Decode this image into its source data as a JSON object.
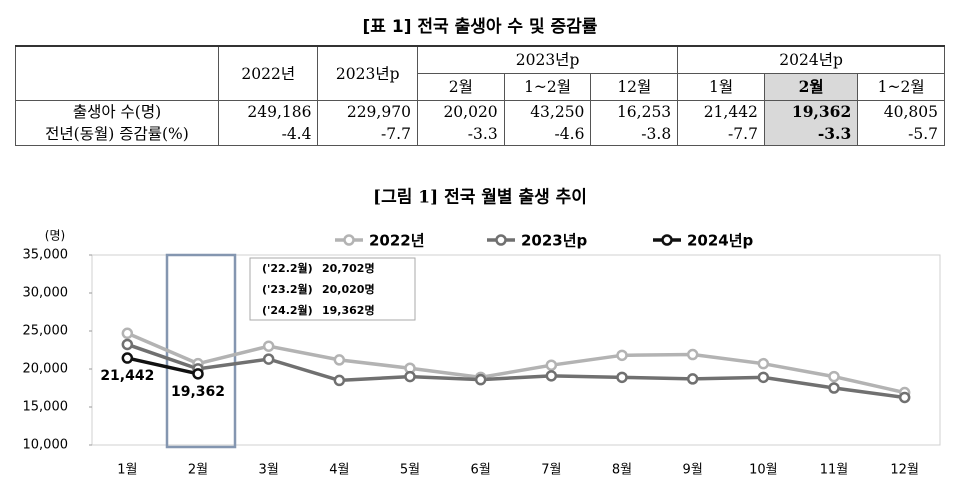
{
  "table": {
    "title": "[표 1] 전국 출생아 수 및 증감률",
    "years": [
      "2022년",
      "2023년p",
      "2023년p",
      "2024년p"
    ],
    "months": [
      "2월",
      "1~2월",
      "12월",
      "1월",
      "2월",
      "1~2월"
    ],
    "rows": [
      {
        "label": "출생아 수(명)",
        "cells": [
          "249,186",
          "229,970",
          "20,020",
          "43,250",
          "16,253",
          "21,442",
          "19,362",
          "40,805"
        ]
      },
      {
        "label": "전년(동월) 증감률(%)",
        "cells": [
          "-4.4",
          "-7.7",
          "-3.3",
          "-4.6",
          "-3.8",
          "-7.7",
          "-3.3",
          "-5.7"
        ]
      }
    ]
  },
  "chart_data": {
    "type": "line",
    "title": "[그림 1] 전국 월별 출생 추이",
    "y_label": "(명)",
    "categories": [
      "1월",
      "2월",
      "3월",
      "4월",
      "5월",
      "6월",
      "7월",
      "8월",
      "9월",
      "10월",
      "11월",
      "12월"
    ],
    "ylim": [
      10000,
      35000
    ],
    "yticks": [
      {
        "value": 10000,
        "label": "10,000"
      },
      {
        "value": 15000,
        "label": "15,000"
      },
      {
        "value": 20000,
        "label": "20,000"
      },
      {
        "value": 25000,
        "label": "25,000"
      },
      {
        "value": 30000,
        "label": "30,000"
      },
      {
        "value": 35000,
        "label": "35,000"
      }
    ],
    "series": [
      {
        "name": "2022년",
        "color": "#b3b3b3",
        "values": [
          24700,
          20702,
          23000,
          21200,
          20100,
          18900,
          20500,
          21800,
          21900,
          20700,
          19000,
          16900
        ]
      },
      {
        "name": "2023년p",
        "color": "#707070",
        "values": [
          23230,
          20020,
          21300,
          18500,
          19000,
          18600,
          19100,
          18900,
          18700,
          18900,
          17500,
          16253
        ]
      },
      {
        "name": "2024년p",
        "color": "#111111",
        "values": [
          21442,
          19362,
          null,
          null,
          null,
          null,
          null,
          null,
          null,
          null,
          null,
          null
        ],
        "value_labels": [
          "21,442",
          "19,362",
          null,
          null,
          null,
          null,
          null,
          null,
          null,
          null,
          null,
          null
        ]
      }
    ],
    "annotations": [
      {
        "period": "('22.2월)",
        "value": "20,702명"
      },
      {
        "period": "('23.2월)",
        "value": "20,020명"
      },
      {
        "period": "('24.2월)",
        "value": "19,362명"
      }
    ]
  }
}
